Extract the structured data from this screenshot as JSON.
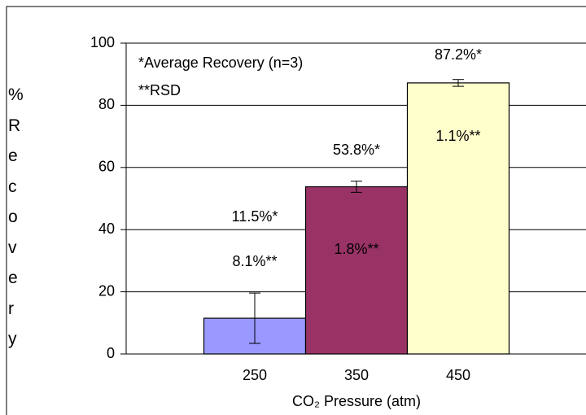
{
  "chart_data": {
    "type": "bar",
    "categories": [
      "250",
      "350",
      "450"
    ],
    "values": [
      11.5,
      53.8,
      87.2
    ],
    "value_labels": [
      "11.5%*",
      "53.8%*",
      "87.2%*"
    ],
    "errors": [
      8.1,
      1.8,
      1.1
    ],
    "error_labels": [
      "8.1%**",
      "1.8%**",
      "1.1%**"
    ],
    "colors": [
      "#9999ff",
      "#993366",
      "#ffffcc"
    ],
    "ylim": [
      0,
      100
    ],
    "yticks": [
      0,
      20,
      40,
      60,
      80,
      100
    ],
    "grid": true,
    "ylabel": "%Recovery",
    "xlabel": "CO₂ Pressure (atm)",
    "annotations": [
      "*Average Recovery (n=3)",
      "**RSD"
    ]
  }
}
